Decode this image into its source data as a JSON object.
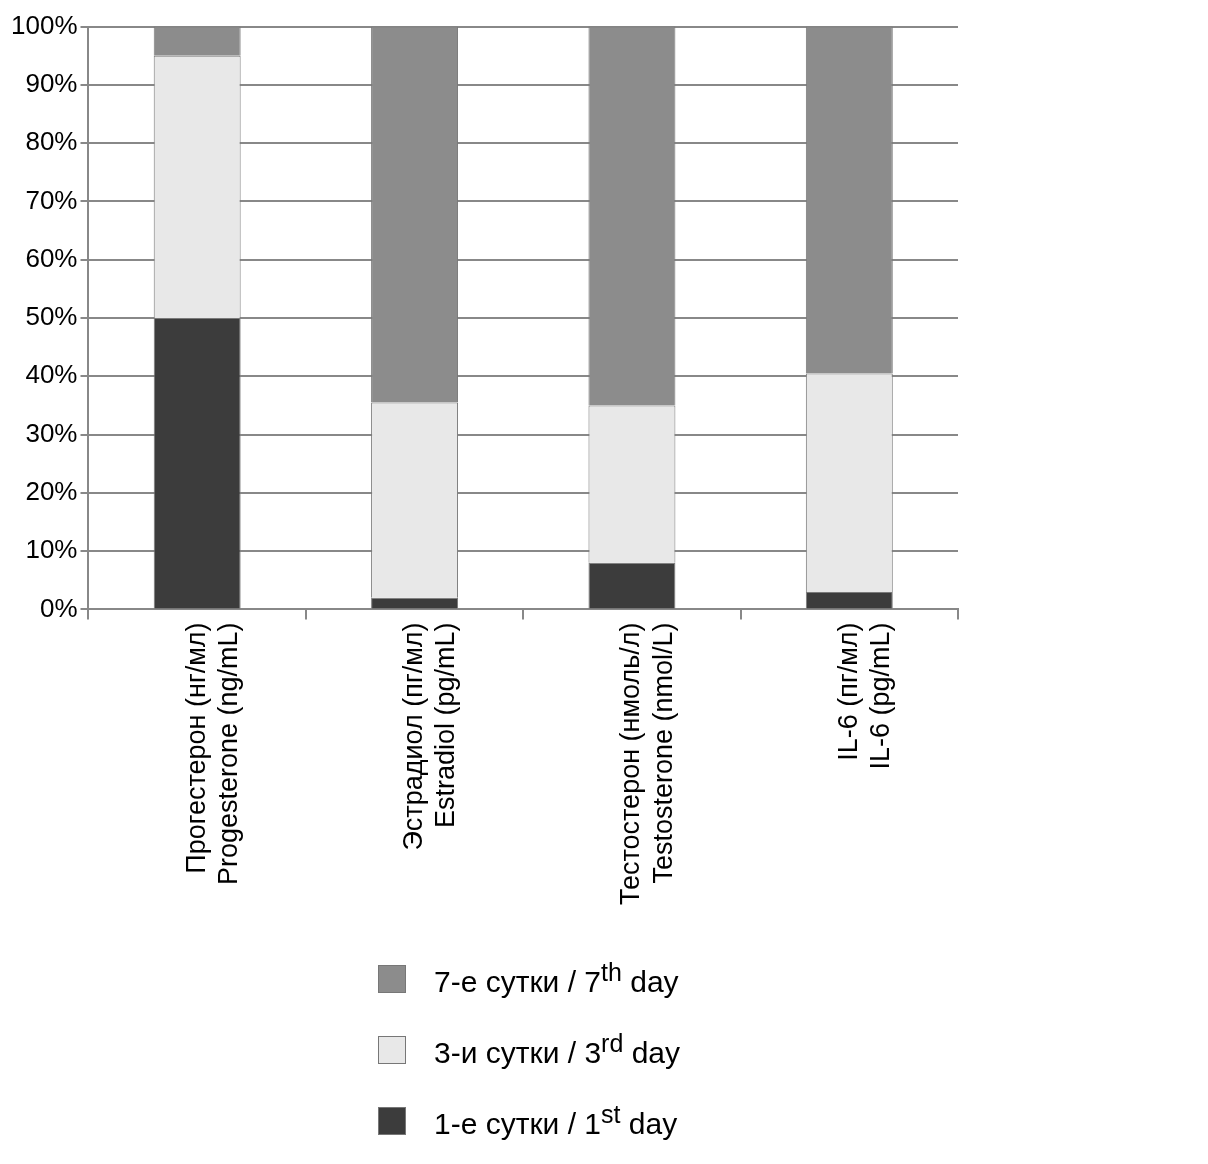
{
  "chart_data": {
    "type": "bar",
    "stacked": true,
    "categories": [
      [
        "Прогестерон (нг/мл)",
        "Progesterone (ng/mL)"
      ],
      [
        "Эстрадиол (пг/мл)",
        "Estradiol (pg/mL)"
      ],
      [
        "Тестостерон (нмоль/л)",
        "Testosterone (nmol/L)"
      ],
      [
        "IL-6 (пг/мл)",
        "IL-6 (pg/mL)"
      ]
    ],
    "series": [
      {
        "name": "1-е сутки / 1$^{st}$ day",
        "color": "#3c3c3c",
        "values": [
          50,
          2,
          8,
          3
        ]
      },
      {
        "name": "3-и сутки / 3$^{rd}$ day",
        "color": "#e8e8e8",
        "values": [
          45,
          33.5,
          27,
          37.5
        ]
      },
      {
        "name": "7-е сутки / 7$^{th}$ day",
        "color": "#8c8c8c",
        "values": [
          5,
          64.5,
          65,
          59.5
        ]
      }
    ],
    "ylim": [
      0,
      100
    ],
    "yticks": [
      {
        "value": 0,
        "label": "0%"
      },
      {
        "value": 10,
        "label": "10%"
      },
      {
        "value": 20,
        "label": "20%"
      },
      {
        "value": 30,
        "label": "30%"
      },
      {
        "value": 40,
        "label": "40%"
      },
      {
        "value": 50,
        "label": "50%"
      },
      {
        "value": 60,
        "label": "60%"
      },
      {
        "value": 70,
        "label": "70%"
      },
      {
        "value": 80,
        "label": "80%"
      },
      {
        "value": 90,
        "label": "90%"
      },
      {
        "value": 100,
        "label": "100%"
      }
    ],
    "grid": "y",
    "legend": "bottom"
  }
}
